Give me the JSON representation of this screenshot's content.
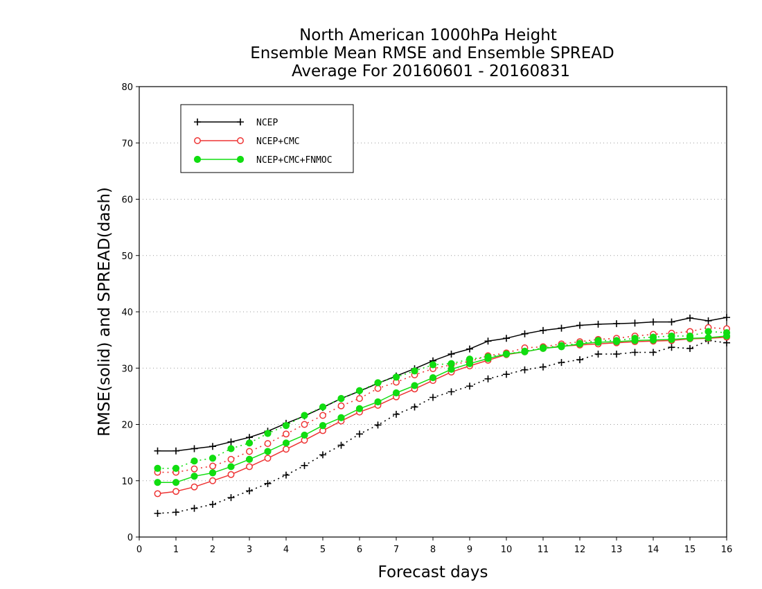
{
  "chart_data": {
    "type": "line",
    "title": [
      "North American 1000hPa Height",
      "Ensemble Mean RMSE and Ensemble SPREAD",
      "Average For 20160601 - 20160831"
    ],
    "xlabel": "Forecast days",
    "ylabel": "RMSE(solid) and SPREAD(dash)",
    "xlim": [
      0,
      16
    ],
    "ylim": [
      0,
      80
    ],
    "xticks": [
      "0",
      "1",
      "2",
      "3",
      "4",
      "5",
      "6",
      "7",
      "8",
      "9",
      "10",
      "11",
      "12",
      "13",
      "14",
      "15",
      "16"
    ],
    "yticks": [
      "0",
      "10",
      "20",
      "30",
      "40",
      "50",
      "60",
      "70",
      "80"
    ],
    "grid": "horizontal dotted",
    "legend_position": "top-left",
    "x": [
      0.5,
      1,
      1.5,
      2,
      2.5,
      3,
      3.5,
      4,
      4.5,
      5,
      5.5,
      6,
      6.5,
      7,
      7.5,
      8,
      8.5,
      9,
      9.5,
      10,
      10.5,
      11,
      11.5,
      12,
      12.5,
      13,
      13.5,
      14,
      14.5,
      15,
      15.5,
      16
    ],
    "series": [
      {
        "name": "NCEP",
        "color": "#000000",
        "marker": "plus",
        "rmse": [
          15.3,
          15.3,
          15.7,
          16.1,
          16.9,
          17.7,
          18.8,
          20.2,
          21.5,
          23.0,
          24.6,
          25.9,
          27.3,
          28.6,
          29.9,
          31.3,
          32.5,
          33.4,
          34.8,
          35.3,
          36.1,
          36.7,
          37.1,
          37.6,
          37.8,
          37.9,
          38.0,
          38.2,
          38.2,
          38.9,
          38.4,
          39.0
        ],
        "spread": [
          4.2,
          4.4,
          5.1,
          5.8,
          7.0,
          8.2,
          9.5,
          11.0,
          12.7,
          14.6,
          16.3,
          18.3,
          19.9,
          21.8,
          23.1,
          24.8,
          25.8,
          26.8,
          28.1,
          28.9,
          29.7,
          30.2,
          31.0,
          31.5,
          32.5,
          32.5,
          32.8,
          32.8,
          33.7,
          33.5,
          34.9,
          34.5
        ]
      },
      {
        "name": "NCEP+CMC",
        "color": "#ee3333",
        "marker": "open-circle",
        "rmse": [
          7.7,
          8.1,
          8.9,
          10.0,
          11.1,
          12.5,
          14.0,
          15.6,
          17.2,
          18.9,
          20.6,
          22.2,
          23.4,
          24.9,
          26.3,
          27.8,
          29.3,
          30.4,
          31.4,
          32.4,
          32.9,
          33.5,
          33.9,
          34.1,
          34.3,
          34.5,
          34.7,
          34.8,
          34.9,
          35.2,
          35.3,
          35.5
        ],
        "spread": [
          11.5,
          11.5,
          12.1,
          12.6,
          13.8,
          15.2,
          16.6,
          18.3,
          20.0,
          21.6,
          23.3,
          24.6,
          26.4,
          27.5,
          28.8,
          29.9,
          30.6,
          31.2,
          32.2,
          32.7,
          33.6,
          33.8,
          34.3,
          34.7,
          35.1,
          35.3,
          35.7,
          36.0,
          36.2,
          36.5,
          37.2,
          37.0
        ]
      },
      {
        "name": "NCEP+CMC+FNMOC",
        "color": "#11dd11",
        "marker": "filled-circle",
        "rmse": [
          9.7,
          9.7,
          10.8,
          11.4,
          12.5,
          13.8,
          15.2,
          16.7,
          18.1,
          19.8,
          21.2,
          22.8,
          24.0,
          25.6,
          26.9,
          28.3,
          29.8,
          30.8,
          31.7,
          32.5,
          32.9,
          33.5,
          33.8,
          34.3,
          34.6,
          34.7,
          34.9,
          35.0,
          35.1,
          35.3,
          35.4,
          35.7
        ],
        "spread": [
          12.2,
          12.2,
          13.5,
          14.0,
          15.7,
          16.7,
          18.4,
          19.8,
          21.6,
          23.1,
          24.6,
          26.0,
          27.4,
          28.4,
          29.5,
          30.6,
          30.8,
          31.6,
          32.0,
          32.5,
          33.0,
          33.6,
          34.0,
          34.4,
          34.9,
          34.9,
          35.3,
          35.5,
          35.7,
          35.7,
          36.5,
          36.3
        ]
      }
    ]
  }
}
